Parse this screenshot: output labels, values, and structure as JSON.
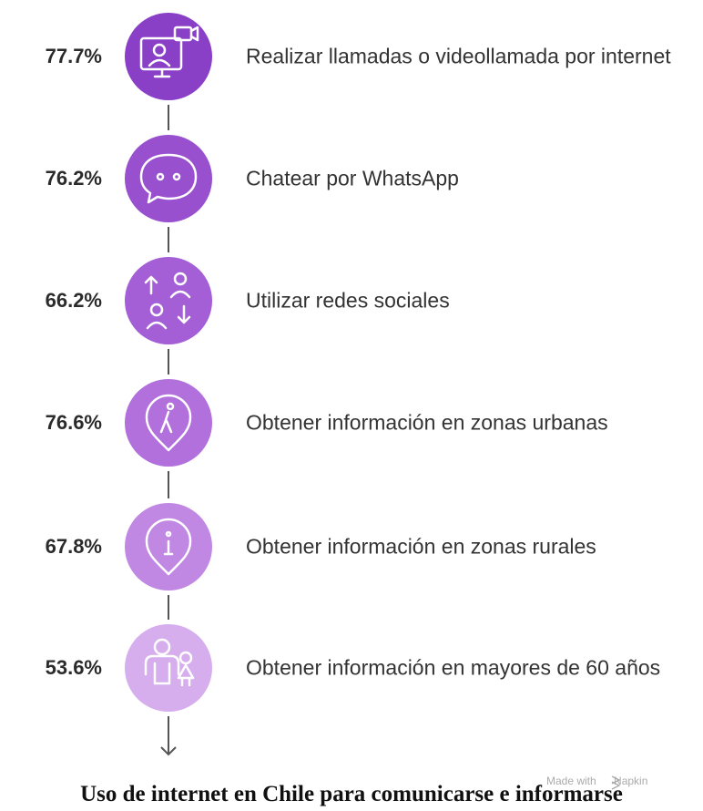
{
  "items": [
    {
      "value": "77.7%",
      "label": "Realizar llamadas o videollamada por internet"
    },
    {
      "value": "76.2%",
      "label": "Chatear por WhatsApp"
    },
    {
      "value": "66.2%",
      "label": "Utilizar redes sociales"
    },
    {
      "value": "76.6%",
      "label": "Obtener información en zonas urbanas"
    },
    {
      "value": "67.8%",
      "label": "Obtener información en zonas rurales"
    },
    {
      "value": "53.6%",
      "label": "Obtener información en mayores de 60 años"
    }
  ],
  "watermark": {
    "prefix": "Made with",
    "brand": "Napkin"
  },
  "title": "Uso de internet en Chile para comunicarse e informarse"
}
